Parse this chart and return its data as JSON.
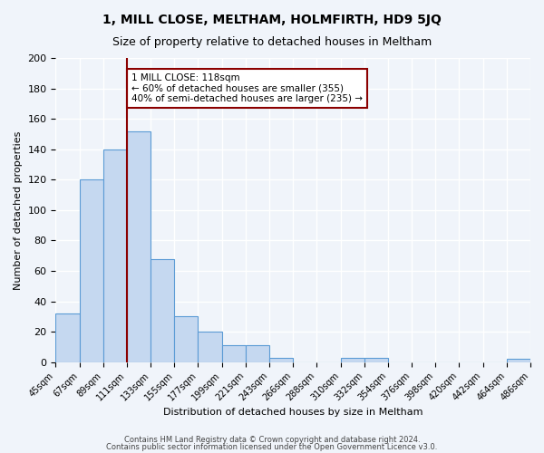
{
  "title": "1, MILL CLOSE, MELTHAM, HOLMFIRTH, HD9 5JQ",
  "subtitle": "Size of property relative to detached houses in Meltham",
  "xlabel": "Distribution of detached houses by size in Meltham",
  "ylabel": "Number of detached properties",
  "bar_labels": [
    "45sqm",
    "67sqm",
    "89sqm",
    "111sqm",
    "133sqm",
    "155sqm",
    "177sqm",
    "199sqm",
    "221sqm",
    "243sqm",
    "266sqm",
    "288sqm",
    "310sqm",
    "332sqm",
    "354sqm",
    "376sqm",
    "398sqm",
    "420sqm",
    "442sqm",
    "464sqm",
    "486sqm"
  ],
  "bar_values": [
    32,
    120,
    140,
    152,
    68,
    30,
    20,
    11,
    11,
    3,
    0,
    0,
    3,
    3,
    0,
    0,
    0,
    0,
    0,
    2
  ],
  "bar_color": "#c5d8f0",
  "bar_edge_color": "#5b9bd5",
  "vline_x": 3,
  "vline_color": "#8b0000",
  "annotation_text": "1 MILL CLOSE: 118sqm\n← 60% of detached houses are smaller (355)\n40% of semi-detached houses are larger (235) →",
  "annotation_box_color": "white",
  "annotation_box_edge": "#8b0000",
  "ylim": [
    0,
    200
  ],
  "yticks": [
    0,
    20,
    40,
    60,
    80,
    100,
    120,
    140,
    160,
    180,
    200
  ],
  "background_color": "#f0f4fa",
  "grid_color": "#ffffff",
  "footer1": "Contains HM Land Registry data © Crown copyright and database right 2024.",
  "footer2": "Contains public sector information licensed under the Open Government Licence v3.0."
}
